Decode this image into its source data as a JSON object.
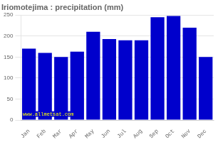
{
  "chart_data": {
    "type": "bar",
    "title": "Iriomotejima : precipitation (mm)",
    "categories": [
      "Jan",
      "Feb",
      "Mar",
      "Apr",
      "May",
      "Jun",
      "Jul",
      "Aug",
      "Sep",
      "Oct",
      "Nov",
      "Dec"
    ],
    "values": [
      170,
      160,
      150,
      163,
      210,
      193,
      190,
      190,
      245,
      248,
      220,
      150
    ],
    "color": "#0000CC",
    "ylim": [
      0,
      250
    ],
    "yticks": [
      0,
      50,
      100,
      150,
      200,
      250
    ],
    "grid": true,
    "annotations": [
      "www.allmetsat.com"
    ]
  }
}
